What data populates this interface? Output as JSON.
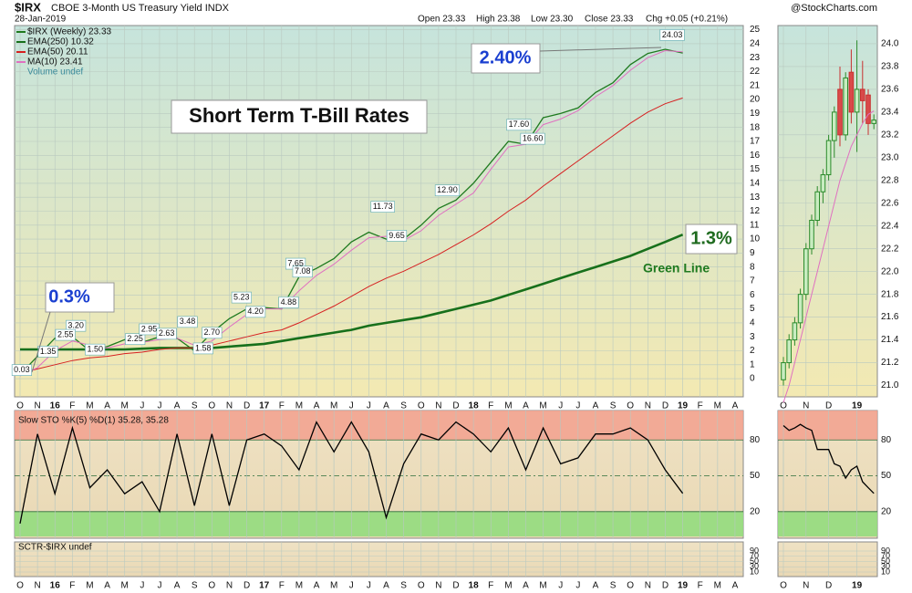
{
  "chart_data": [
    {
      "type": "line",
      "symbol": "$IRX",
      "title": "CBOE 3-Month US Treasury Yield INDX",
      "source": "@StockCharts.com",
      "date": "28-Jan-2019",
      "quote": [
        "Open 23.33",
        "High 23.38",
        "Low 23.30",
        "Close 23.33",
        "Chg +0.05 (+0.21%)"
      ],
      "categories": [
        "O",
        "N",
        "16",
        "F",
        "M",
        "A",
        "M",
        "J",
        "J",
        "A",
        "S",
        "O",
        "N",
        "D",
        "17",
        "F",
        "M",
        "A",
        "M",
        "J",
        "J",
        "A",
        "S",
        "O",
        "N",
        "D",
        "18",
        "F",
        "M",
        "A",
        "M",
        "J",
        "J",
        "A",
        "S",
        "O",
        "N",
        "D",
        "19",
        "F",
        "M",
        "A"
      ],
      "series": [
        {
          "name": "$IRX (Weekly) 23.33",
          "color": "#1f7a1f",
          "values": [
            0.3,
            1.6,
            2.9,
            3.0,
            2.0,
            2.3,
            2.8,
            2.6,
            3.0,
            2.9,
            2.0,
            3.3,
            4.3,
            5.0,
            5.1,
            5.0,
            7.3,
            7.9,
            8.6,
            9.8,
            10.5,
            10.0,
            10.0,
            11.0,
            12.2,
            12.8,
            14.0,
            15.5,
            17.0,
            16.8,
            18.7,
            19.0,
            19.4,
            20.5,
            21.2,
            22.5,
            23.3,
            23.6,
            23.33,
            null,
            null,
            null
          ]
        },
        {
          "name": "EMA(250) 10.32",
          "color": "#17701b",
          "values": [
            2.1,
            2.1,
            2.1,
            2.1,
            2.1,
            2.1,
            2.1,
            2.15,
            2.2,
            2.2,
            2.2,
            2.2,
            2.3,
            2.4,
            2.5,
            2.7,
            2.9,
            3.1,
            3.3,
            3.5,
            3.8,
            4.0,
            4.2,
            4.4,
            4.7,
            5.0,
            5.3,
            5.6,
            6.0,
            6.4,
            6.8,
            7.2,
            7.6,
            8.0,
            8.4,
            8.8,
            9.3,
            9.8,
            10.32,
            null,
            null,
            null
          ]
        },
        {
          "name": "EMA(50) 20.11",
          "color": "#d62020",
          "values": [
            0.4,
            0.7,
            1.0,
            1.3,
            1.5,
            1.6,
            1.8,
            1.9,
            2.1,
            2.2,
            2.2,
            2.4,
            2.7,
            3.0,
            3.3,
            3.5,
            4.0,
            4.6,
            5.2,
            5.9,
            6.6,
            7.2,
            7.7,
            8.3,
            8.9,
            9.6,
            10.3,
            11.1,
            12.0,
            12.8,
            13.8,
            14.7,
            15.6,
            16.5,
            17.4,
            18.3,
            19.1,
            19.7,
            20.11,
            null,
            null,
            null
          ]
        },
        {
          "name": "MA(10) 23.41",
          "color": "#e070c0",
          "values": [
            0.2,
            0.8,
            2.0,
            2.7,
            2.4,
            2.2,
            2.5,
            2.6,
            2.8,
            2.9,
            2.4,
            2.7,
            3.7,
            4.6,
            5.0,
            5.0,
            6.3,
            7.4,
            8.2,
            9.2,
            10.1,
            10.2,
            9.9,
            10.6,
            11.7,
            12.5,
            13.3,
            15.0,
            16.6,
            16.8,
            18.2,
            18.6,
            19.2,
            20.2,
            21.0,
            22.1,
            23.0,
            23.5,
            23.41,
            null,
            null,
            null
          ]
        }
      ],
      "legend_extra": "Volume undef",
      "callouts": [
        {
          "x": 0.1,
          "value": 0.03
        },
        {
          "x": 1.6,
          "value": 1.35
        },
        {
          "x": 3.2,
          "value": 3.2,
          "label": "3.20"
        },
        {
          "x": 2.6,
          "value": 2.55
        },
        {
          "x": 4.3,
          "value": 1.5,
          "label": "1.50"
        },
        {
          "x": 6.6,
          "value": 2.25
        },
        {
          "x": 7.4,
          "value": 2.95
        },
        {
          "x": 8.4,
          "value": 2.63
        },
        {
          "x": 9.6,
          "value": 3.48
        },
        {
          "x": 10.5,
          "value": 1.58
        },
        {
          "x": 11.0,
          "value": 2.7,
          "label": "2.70"
        },
        {
          "x": 12.7,
          "value": 5.23
        },
        {
          "x": 13.5,
          "value": 4.2,
          "label": "4.20"
        },
        {
          "x": 15.8,
          "value": 7.65
        },
        {
          "x": 16.2,
          "value": 7.08
        },
        {
          "x": 15.4,
          "value": 4.88
        },
        {
          "x": 20.8,
          "value": 11.73
        },
        {
          "x": 21.6,
          "value": 9.65
        },
        {
          "x": 24.5,
          "value": 12.9,
          "label": "12.90"
        },
        {
          "x": 28.6,
          "value": 17.6,
          "label": "17.60"
        },
        {
          "x": 29.4,
          "value": 16.6,
          "label": "16.60"
        },
        {
          "x": 37.4,
          "value": 24.03
        }
      ],
      "annotations": [
        "Short Term T-Bill Rates",
        "2.40%",
        "0.3%",
        "1.3%",
        "Green Line"
      ],
      "ylim": [
        -1.3,
        25.3
      ],
      "yticks": [
        0,
        1,
        2,
        3,
        4,
        5,
        6,
        7,
        8,
        9,
        10,
        11,
        12,
        13,
        14,
        15,
        16,
        17,
        18,
        19,
        20,
        21,
        22,
        23,
        24,
        25
      ],
      "grid": true
    },
    {
      "type": "candlestick",
      "categories": [
        "O",
        null,
        null,
        null,
        "N",
        null,
        null,
        null,
        "D",
        null,
        null,
        null,
        null,
        "19",
        null,
        null,
        null
      ],
      "open": [
        21.05,
        21.2,
        21.4,
        21.55,
        21.8,
        22.2,
        22.45,
        22.7,
        22.85,
        23.15,
        23.6,
        23.2,
        23.75,
        23.4,
        23.6,
        23.55,
        23.3
      ],
      "high": [
        21.25,
        21.45,
        21.6,
        21.85,
        22.25,
        22.5,
        22.75,
        22.9,
        23.2,
        23.45,
        23.8,
        23.75,
        23.95,
        24.03,
        23.85,
        23.6,
        23.38
      ],
      "low": [
        21.0,
        21.15,
        21.35,
        21.5,
        21.75,
        22.15,
        22.4,
        22.6,
        22.8,
        23.0,
        23.1,
        23.15,
        23.3,
        23.05,
        23.3,
        23.2,
        23.25
      ],
      "close": [
        21.2,
        21.4,
        21.55,
        21.8,
        22.2,
        22.45,
        22.7,
        22.85,
        23.15,
        23.4,
        23.2,
        23.7,
        23.4,
        23.6,
        23.5,
        23.3,
        23.33
      ],
      "series": [
        {
          "name": "MA(10)",
          "color": "#e070c0",
          "values": [
            20.85,
            21.0,
            21.2,
            21.4,
            21.6,
            21.8,
            22.0,
            22.2,
            22.4,
            22.6,
            22.8,
            22.95,
            23.1,
            23.2,
            23.3,
            23.38,
            23.41
          ]
        }
      ],
      "ylim": [
        20.9,
        24.16
      ],
      "yticks": [
        {
          "value": 21,
          "label": "21.0"
        },
        21.2,
        21.4,
        21.6,
        21.8,
        {
          "value": 22,
          "label": "22.0"
        },
        22.2,
        22.4,
        22.6,
        22.8,
        {
          "value": 23,
          "label": "23.0"
        },
        23.2,
        23.4,
        23.6,
        23.8,
        {
          "value": 24,
          "label": "24.0"
        }
      ],
      "grid": true
    },
    {
      "type": "line",
      "title": "Slow STO %K(5) %D(1) 35.28, 35.28",
      "categories": [
        "O",
        "N",
        "16",
        "F",
        "M",
        "A",
        "M",
        "J",
        "J",
        "A",
        "S",
        "O",
        "N",
        "D",
        "17",
        "F",
        "M",
        "A",
        "M",
        "J",
        "J",
        "A",
        "S",
        "O",
        "N",
        "D",
        "18",
        "F",
        "M",
        "A",
        "M",
        "J",
        "J",
        "A",
        "S",
        "O",
        "N",
        "D",
        "19",
        "F",
        "M",
        "A"
      ],
      "series": [
        {
          "name": "%K",
          "color": "#000000",
          "values": [
            10,
            85,
            35,
            90,
            40,
            55,
            35,
            45,
            20,
            85,
            25,
            85,
            25,
            80,
            85,
            75,
            55,
            95,
            70,
            95,
            70,
            15,
            60,
            85,
            80,
            95,
            85,
            70,
            90,
            55,
            90,
            60,
            65,
            85,
            85,
            90,
            80,
            55,
            35.28,
            null,
            null,
            null
          ]
        }
      ],
      "ylim": [
        -2.3,
        104.6
      ],
      "yticks": [
        20,
        50,
        80
      ]
    },
    {
      "type": "line",
      "categories": [
        "O",
        null,
        null,
        null,
        "N",
        null,
        null,
        null,
        "D",
        null,
        null,
        null,
        null,
        "19",
        null,
        null,
        null
      ],
      "series": [
        {
          "name": "%K",
          "color": "#000000",
          "values": [
            92,
            88,
            90,
            93,
            90,
            88,
            72,
            72,
            72,
            60,
            58,
            48,
            55,
            58,
            45,
            40,
            35.28
          ]
        }
      ],
      "ylim": [
        -2.3,
        104.6
      ],
      "yticks": [
        20,
        50,
        80
      ]
    },
    {
      "type": "line",
      "title": "SCTR-$IRX undef",
      "ylim": [
        -7.4,
        124.8
      ],
      "yticks": [
        10,
        30,
        50,
        70,
        90
      ]
    },
    {
      "type": "line",
      "ylim": [
        -7.4,
        124.8
      ],
      "yticks": [
        10,
        30,
        50,
        70,
        90
      ]
    }
  ]
}
